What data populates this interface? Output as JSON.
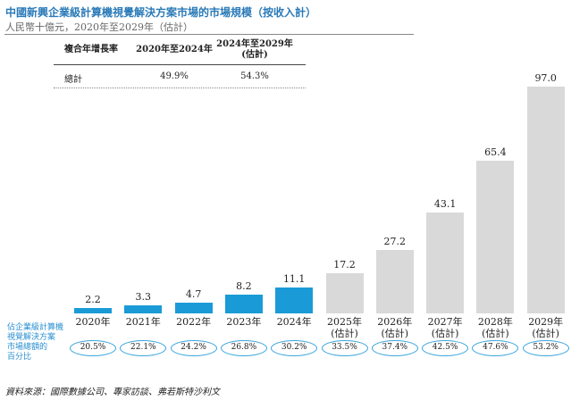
{
  "chart_data": {
    "type": "bar",
    "title": "中國新興企業級計算機視覺解決方案市場的市場規模（按收入計）",
    "subtitle": "人民幣十億元，2020年至2029年（估計）",
    "cagr_table": {
      "header": [
        "複合年增長率",
        "2020年至2024年",
        "2024年至2029年\n(估計)"
      ],
      "rows": [
        [
          "總計",
          "49.9%",
          "54.3%"
        ]
      ]
    },
    "categories": [
      "2020年",
      "2021年",
      "2022年",
      "2023年",
      "2024年",
      "2025年\n(估計)",
      "2026年\n(估計)",
      "2027年\n(估計)",
      "2028年\n(估計)",
      "2029年\n(估計)"
    ],
    "values": [
      2.2,
      3.3,
      4.7,
      8.2,
      11.1,
      17.2,
      27.2,
      43.1,
      65.4,
      97.0
    ],
    "value_labels": [
      "2.2",
      "3.3",
      "4.7",
      "8.2",
      "11.1",
      "17.2",
      "27.2",
      "43.1",
      "65.4",
      "97.0"
    ],
    "colors": [
      "#1a9bd7",
      "#1a9bd7",
      "#1a9bd7",
      "#1a9bd7",
      "#1a9bd7",
      "#d9d9d9",
      "#d9d9d9",
      "#d9d9d9",
      "#d9d9d9",
      "#d9d9d9"
    ],
    "share_label": [
      "佔企業級計算機",
      "視覺解決方案",
      "市場總額的",
      "百分比"
    ],
    "share_values": [
      20.5,
      22.1,
      24.2,
      26.8,
      30.2,
      33.5,
      37.4,
      42.5,
      47.6,
      53.2
    ],
    "share_value_labels": [
      "20.5%",
      "22.1%",
      "24.2%",
      "26.8%",
      "30.2%",
      "33.5%",
      "37.4%",
      "42.5%",
      "47.6%",
      "53.2%"
    ],
    "source": "資料來源：國際數據公司、專家訪談、弗若斯特沙利文"
  }
}
